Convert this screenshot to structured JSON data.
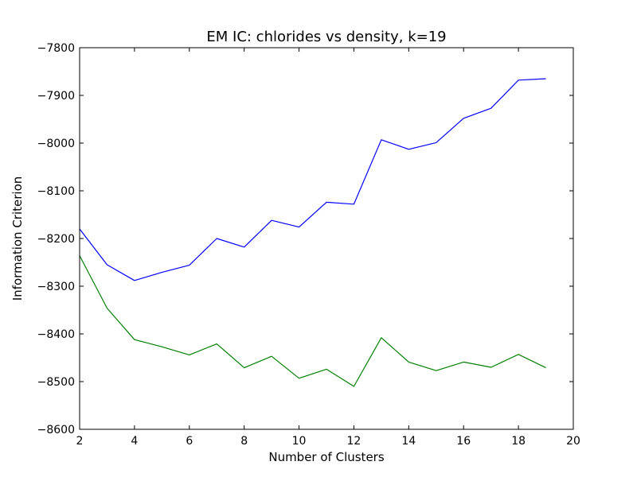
{
  "chart_data": {
    "type": "line",
    "title": "EM IC: chlorides vs density, k=19",
    "xlabel": "Number of Clusters",
    "ylabel": "Information Criterion",
    "xlim": [
      2,
      20
    ],
    "ylim": [
      -8600,
      -7800
    ],
    "xticks": [
      2,
      4,
      6,
      8,
      10,
      12,
      14,
      16,
      18,
      20
    ],
    "yticks": [
      -8600,
      -8500,
      -8400,
      -8300,
      -8200,
      -8100,
      -8000,
      -7900,
      -7800
    ],
    "x": [
      2,
      3,
      4,
      5,
      6,
      7,
      8,
      9,
      10,
      11,
      12,
      13,
      14,
      15,
      16,
      17,
      18,
      19
    ],
    "series": [
      {
        "color": "#0000ff",
        "values": [
          -8180,
          -8255,
          -8288,
          -8271,
          -8256,
          -8200,
          -8218,
          -8162,
          -8176,
          -8124,
          -8128,
          -7993,
          -8013,
          -7999,
          -7948,
          -7927,
          -7868,
          -7865
        ]
      },
      {
        "color": "#008000",
        "values": [
          -8236,
          -8346,
          -8412,
          -8427,
          -8444,
          -8421,
          -8471,
          -8447,
          -8493,
          -8474,
          -8510,
          -8408,
          -8459,
          -8477,
          -8459,
          -8470,
          -8443,
          -8471
        ]
      }
    ],
    "grid": false,
    "legend": "none"
  }
}
